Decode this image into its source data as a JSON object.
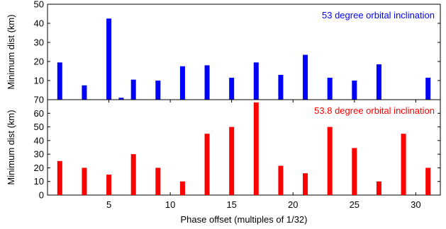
{
  "chart_data": [
    {
      "type": "bar",
      "annotation": "53 degree orbital inclination",
      "color": "#0000ff",
      "ylabel": "Minimum dist (km)",
      "ylim": [
        0,
        50
      ],
      "yticks": [
        10,
        20,
        30,
        40,
        50
      ],
      "xlim": [
        0,
        32
      ],
      "x": [
        1,
        3,
        5,
        6,
        7,
        9,
        11,
        13,
        15,
        17,
        19,
        21,
        23,
        25,
        27,
        31
      ],
      "values": [
        19.5,
        7.5,
        42.5,
        1,
        10.5,
        10,
        17.5,
        18,
        11.5,
        19.5,
        13,
        23.5,
        11.5,
        10,
        18.5,
        11.5
      ]
    },
    {
      "type": "bar",
      "annotation": "53.8 degree orbital inclination",
      "color": "#ff0000",
      "ylabel": "Minimum dist (km)",
      "ylim": [
        0,
        70
      ],
      "yticks": [
        0,
        10,
        20,
        30,
        40,
        50,
        60,
        70
      ],
      "xlim": [
        0,
        32
      ],
      "xlabel": "Phase offset (multiples of 1/32)",
      "xticks": [
        5,
        10,
        15,
        20,
        25,
        30
      ],
      "x": [
        1,
        3,
        5,
        7,
        9,
        11,
        13,
        15,
        17,
        19,
        21,
        23,
        25,
        27,
        29,
        31
      ],
      "values": [
        25,
        20,
        15,
        30,
        20,
        10,
        45,
        50,
        68,
        21.5,
        16,
        50,
        34.5,
        10,
        45,
        20
      ]
    }
  ]
}
